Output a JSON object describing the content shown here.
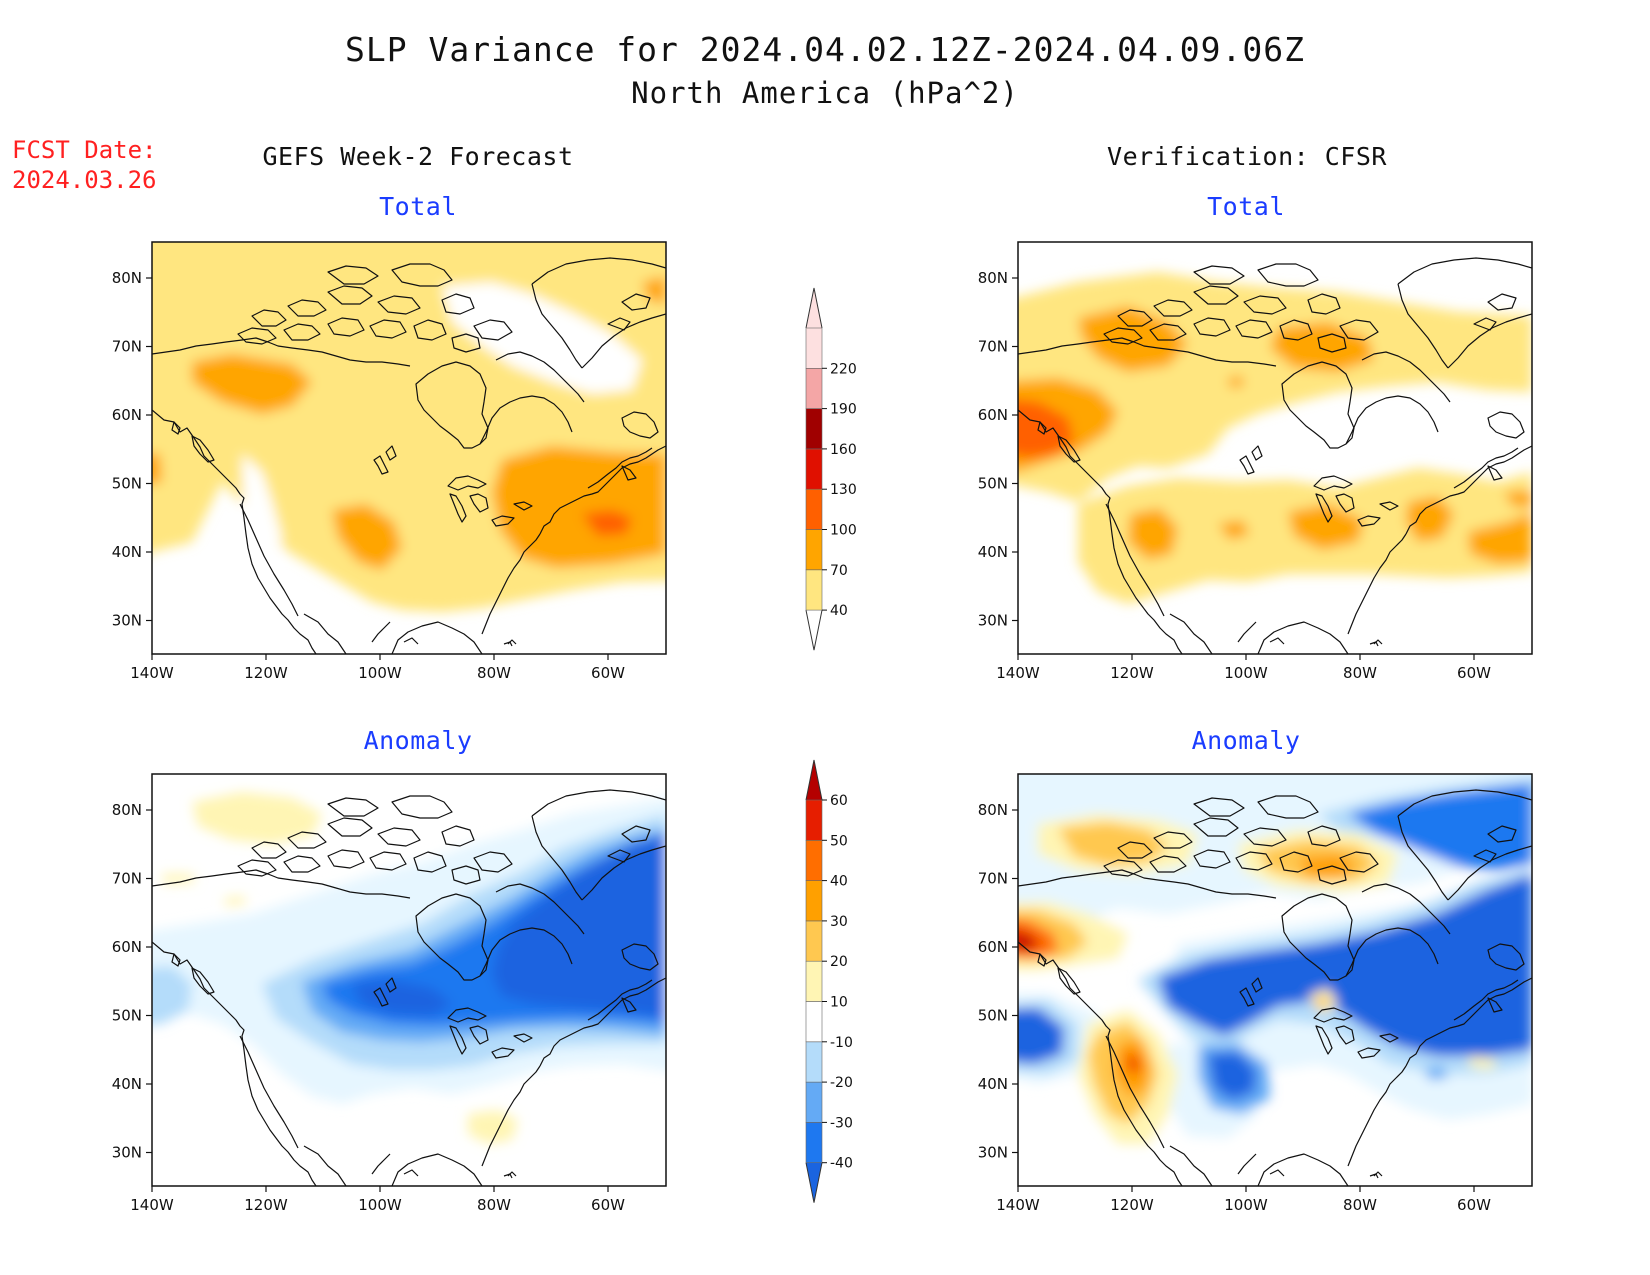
{
  "title_line1": "SLP Variance for 2024.04.02.12Z-2024.04.09.06Z",
  "title_line2": "North America (hPa^2)",
  "fcst_label": "FCST Date:",
  "fcst_date": "2024.03.26",
  "col_left_title": "GEFS Week-2 Forecast",
  "col_right_title": "Verification: CFSR",
  "panel_titles": {
    "tl": "Total",
    "tr": "Total",
    "bl": "Anomaly",
    "br": "Anomaly"
  },
  "map_axes": {
    "lon_ticks": [
      "140W",
      "120W",
      "100W",
      "80W",
      "60W"
    ],
    "lat_ticks": [
      "80N",
      "70N",
      "60N",
      "50N",
      "40N",
      "30N"
    ]
  },
  "colorbar_total": {
    "labels": [
      "40",
      "70",
      "100",
      "130",
      "160",
      "190",
      "220"
    ],
    "colors": [
      "#ffe680",
      "#ffa500",
      "#ff6000",
      "#e01000",
      "#a00000",
      "#f4a6a6",
      "#fde0e0"
    ]
  },
  "colorbar_anomaly": {
    "labels": [
      "-40",
      "-30",
      "-20",
      "-10",
      "10",
      "20",
      "30",
      "40",
      "50",
      "60"
    ],
    "colors": [
      "#1a64e0",
      "#1e78f0",
      "#64aaf5",
      "#b4dcfa",
      "#e6f6ff",
      "#ffffff",
      "#fff5b4",
      "#ffc850",
      "#ffa000",
      "#ff6e00",
      "#e61e00",
      "#b40000"
    ]
  },
  "colors": {
    "title_red": "#ff2020",
    "subtitle_blue": "#1a3cff"
  }
}
